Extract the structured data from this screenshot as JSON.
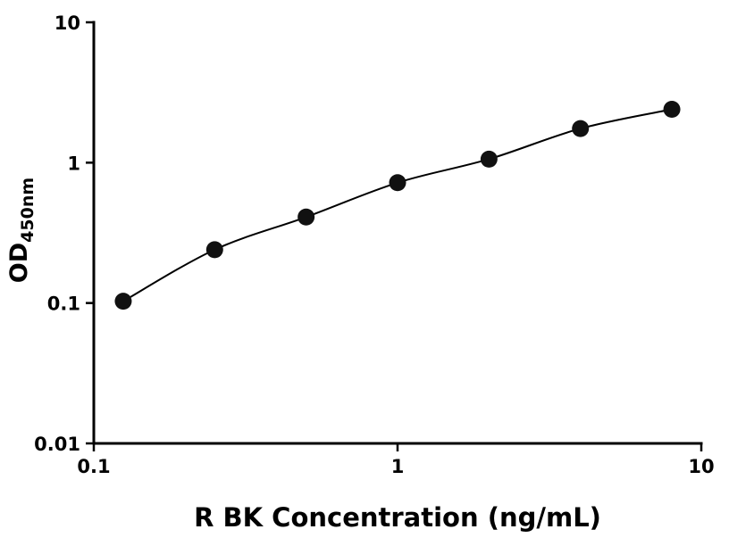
{
  "chart_data": {
    "type": "scatter",
    "title": "",
    "xlabel": "R BK Concentration (ng/mL)",
    "ylabel_main": "OD",
    "ylabel_sub": "450nm",
    "xscale": "log",
    "yscale": "log",
    "xlim": [
      0.1,
      10
    ],
    "ylim": [
      0.01,
      10
    ],
    "x": [
      0.125,
      0.25,
      0.5,
      1,
      2,
      4,
      8
    ],
    "y": [
      0.103,
      0.24,
      0.41,
      0.72,
      1.06,
      1.75,
      2.4
    ],
    "x_ticks": [
      0.1,
      1,
      10
    ],
    "x_tick_labels": [
      "0.1",
      "1",
      "10"
    ],
    "y_ticks": [
      0.01,
      0.1,
      1,
      10
    ],
    "y_tick_labels": [
      "0.01",
      "0.1",
      "1",
      "10"
    ],
    "grid": "off",
    "legend": "none",
    "colors": {
      "marker": "#111111",
      "line": "#000000",
      "axis": "#000000",
      "background": "#ffffff"
    }
  }
}
